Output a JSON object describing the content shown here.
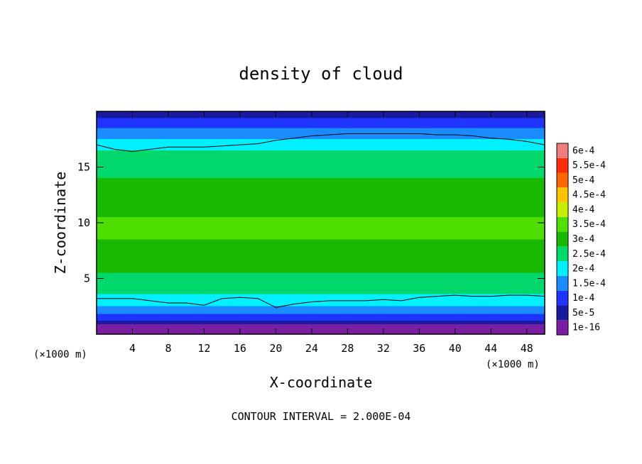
{
  "chart_data": {
    "type": "heatmap",
    "title": "density of cloud",
    "xlabel": "X-coordinate",
    "ylabel": "Z-coordinate",
    "x_unit_label": "(×1000 m)",
    "x_ticks": [
      4,
      8,
      12,
      16,
      20,
      24,
      28,
      32,
      36,
      40,
      44,
      48
    ],
    "y_ticks": [
      5,
      10,
      15
    ],
    "xlim": [
      0,
      50
    ],
    "ylim": [
      0,
      20
    ],
    "colorbar": {
      "levels": [
        "1e-16",
        "5e-5",
        "1e-4",
        "1.5e-4",
        "2e-4",
        "2.5e-4",
        "3e-4",
        "3.5e-4",
        "4e-4",
        "4.5e-4",
        "5e-4",
        "5.5e-4",
        "6e-4"
      ],
      "colors": [
        "#7b1fa2",
        "#1a1aa0",
        "#1f35ff",
        "#1b8cff",
        "#00f0ff",
        "#00d86b",
        "#19b900",
        "#4ede00",
        "#c6f000",
        "#ffc400",
        "#ff6600",
        "#ff2c0c",
        "#f07d7d"
      ]
    },
    "field": {
      "base_level": 0.0,
      "transitions": [
        {
          "z": 0.9,
          "value": 5e-05
        },
        {
          "z": 1.2,
          "value": 0.0001
        },
        {
          "z": 1.8,
          "value": 0.00015
        },
        {
          "z": 2.5,
          "value": 0.0002
        },
        {
          "z": 3.6,
          "value": 0.00025
        },
        {
          "z": 5.5,
          "value": 0.0003
        },
        {
          "z": 8.5,
          "value": 0.00035
        },
        {
          "z": 10.5,
          "value": 0.0003
        },
        {
          "z": 14.0,
          "value": 0.00025
        },
        {
          "z": 16.5,
          "value": 0.0002
        },
        {
          "z": 17.5,
          "value": 0.00015
        },
        {
          "z": 18.5,
          "value": 0.0001
        },
        {
          "z": 19.4,
          "value": 5e-05
        }
      ]
    },
    "contours": [
      {
        "level": 0.0002,
        "x": [
          0,
          2,
          4,
          6,
          8,
          10,
          12,
          14,
          16,
          18,
          20,
          22,
          24,
          26,
          28,
          30,
          32,
          34,
          36,
          38,
          40,
          42,
          44,
          46,
          48,
          50
        ],
        "z": [
          17.0,
          16.6,
          16.4,
          16.6,
          16.8,
          16.8,
          16.8,
          16.9,
          17.0,
          17.1,
          17.4,
          17.6,
          17.8,
          17.9,
          18.0,
          18.0,
          18.0,
          18.0,
          18.0,
          17.9,
          17.9,
          17.8,
          17.6,
          17.5,
          17.3,
          17.0
        ]
      },
      {
        "level": 0.0002,
        "x": [
          0,
          2,
          4,
          6,
          8,
          10,
          12,
          14,
          16,
          18,
          20,
          22,
          24,
          26,
          28,
          30,
          32,
          34,
          36,
          38,
          40,
          42,
          44,
          46,
          48,
          50
        ],
        "z": [
          3.2,
          3.2,
          3.2,
          3.0,
          2.8,
          2.8,
          2.6,
          3.2,
          3.3,
          3.2,
          2.4,
          2.7,
          2.9,
          3.0,
          3.0,
          3.0,
          3.1,
          3.0,
          3.3,
          3.4,
          3.5,
          3.4,
          3.4,
          3.5,
          3.5,
          3.4
        ]
      }
    ]
  },
  "footer": {
    "contour_interval": "CONTOUR INTERVAL = 2.000E-04"
  }
}
